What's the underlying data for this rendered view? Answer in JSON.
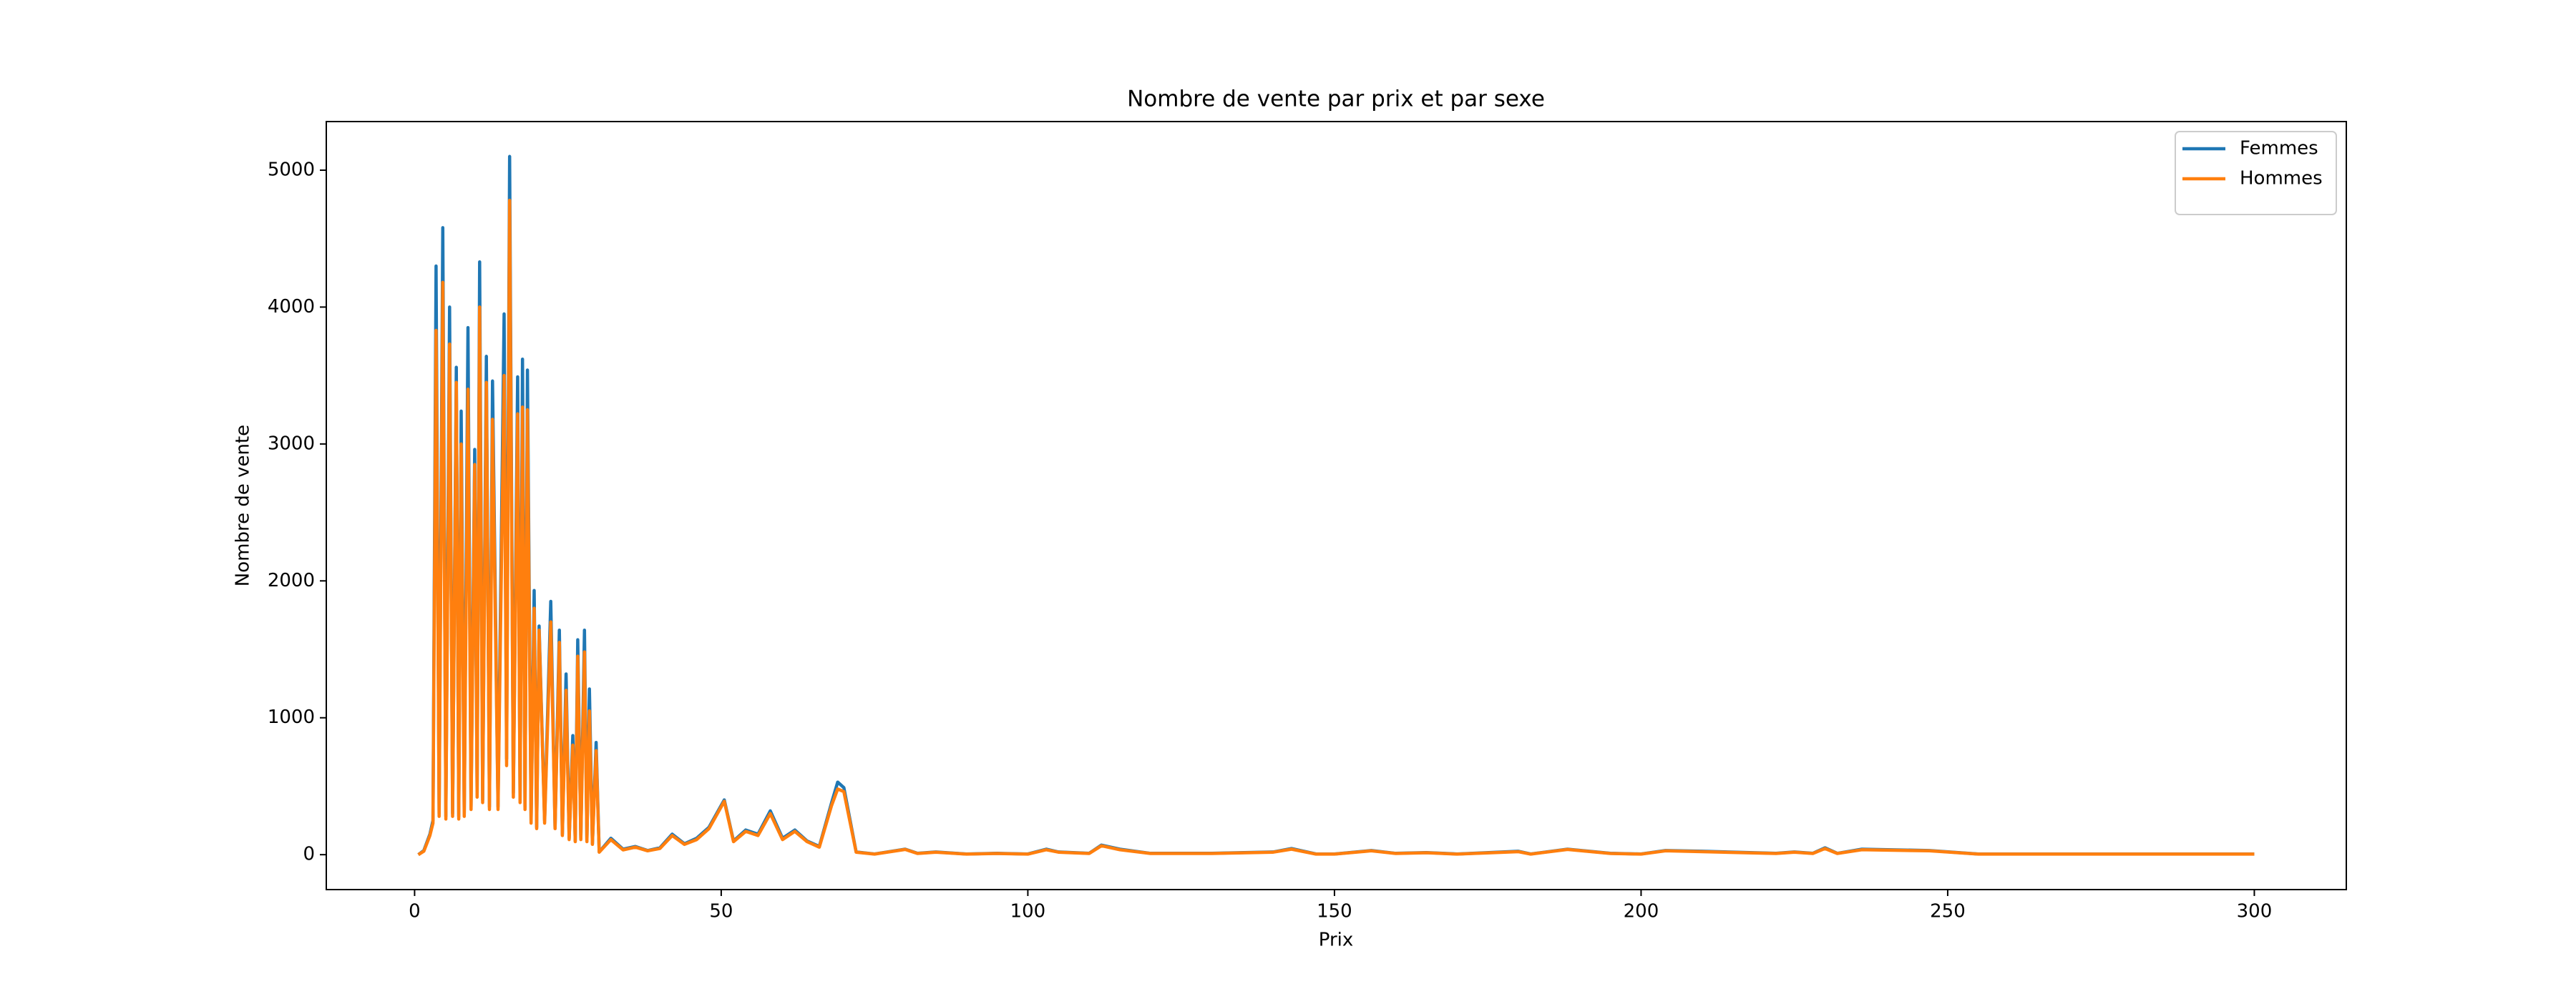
{
  "chart_data": {
    "type": "line",
    "title": "Nombre de vente par prix et par sexe",
    "xlabel": "Prix",
    "ylabel": "Nombre de vente",
    "x": [
      0.6,
      1.5,
      2.5,
      3.0,
      3.5,
      4.0,
      4.6,
      5.1,
      5.7,
      6.2,
      6.8,
      7.2,
      7.6,
      8.1,
      8.7,
      9.2,
      9.8,
      10.2,
      10.6,
      11.1,
      11.7,
      12.2,
      12.7,
      13.6,
      14.6,
      15.0,
      15.5,
      16.1,
      16.8,
      17.2,
      17.6,
      18.0,
      18.4,
      19.0,
      19.5,
      19.9,
      20.3,
      21.2,
      22.2,
      22.9,
      23.6,
      24.1,
      24.7,
      25.2,
      25.8,
      26.2,
      26.6,
      27.1,
      27.7,
      28.1,
      28.5,
      29.0,
      29.6,
      30.1,
      32,
      34,
      36,
      38,
      40,
      42,
      44,
      46,
      48,
      50.5,
      52,
      54,
      56,
      58,
      60,
      62,
      64,
      66,
      68,
      69,
      70,
      72,
      75,
      80,
      82,
      85,
      90,
      95,
      100,
      103,
      105,
      110,
      112,
      115,
      120,
      130,
      140,
      143,
      147,
      150,
      156,
      160,
      165,
      170,
      180,
      182,
      188,
      195,
      200,
      204,
      210,
      222,
      225,
      228,
      230,
      232,
      236,
      247,
      255,
      270,
      285,
      300
    ],
    "series": [
      {
        "name": "Femmes",
        "color": "#1f77b4",
        "values": [
          0,
          30,
          150,
          250,
          4300,
          300,
          4580,
          280,
          4000,
          300,
          3560,
          280,
          3240,
          300,
          3850,
          350,
          2960,
          450,
          4330,
          400,
          3640,
          350,
          3460,
          350,
          3950,
          700,
          5100,
          450,
          3490,
          400,
          3620,
          350,
          3540,
          250,
          1930,
          200,
          1670,
          250,
          1850,
          200,
          1640,
          150,
          1320,
          120,
          870,
          100,
          1570,
          120,
          1640,
          100,
          1210,
          80,
          820,
          20,
          120,
          40,
          60,
          30,
          50,
          150,
          80,
          120,
          200,
          400,
          100,
          180,
          150,
          320,
          120,
          180,
          100,
          60,
          380,
          530,
          490,
          20,
          5,
          40,
          10,
          20,
          5,
          10,
          5,
          40,
          20,
          10,
          70,
          40,
          10,
          10,
          20,
          45,
          5,
          5,
          30,
          10,
          15,
          5,
          25,
          5,
          40,
          10,
          5,
          30,
          25,
          10,
          20,
          10,
          50,
          10,
          40,
          30,
          5,
          5,
          5,
          5
        ]
      },
      {
        "name": "Hommes",
        "color": "#ff7f0e",
        "values": [
          0,
          25,
          140,
          230,
          3830,
          280,
          4180,
          260,
          3730,
          280,
          3450,
          260,
          3000,
          280,
          3400,
          330,
          2850,
          420,
          4000,
          380,
          3450,
          330,
          3180,
          330,
          3500,
          650,
          4780,
          420,
          3220,
          380,
          3270,
          330,
          3250,
          230,
          1800,
          190,
          1640,
          230,
          1700,
          190,
          1550,
          140,
          1200,
          110,
          800,
          95,
          1450,
          110,
          1480,
          95,
          1050,
          75,
          760,
          18,
          110,
          35,
          55,
          28,
          45,
          140,
          75,
          110,
          190,
          390,
          95,
          170,
          140,
          300,
          110,
          170,
          95,
          55,
          360,
          480,
          460,
          18,
          4,
          38,
          9,
          18,
          4,
          9,
          4,
          36,
          18,
          9,
          65,
          36,
          9,
          9,
          18,
          40,
          4,
          4,
          28,
          9,
          14,
          4,
          22,
          4,
          38,
          9,
          4,
          28,
          22,
          9,
          18,
          9,
          45,
          9,
          36,
          28,
          4,
          4,
          4,
          4
        ]
      }
    ],
    "xlim": [
      -14.4,
      315
    ],
    "ylim": [
      -255,
      5355
    ],
    "xticks": [
      0,
      50,
      100,
      150,
      200,
      250,
      300
    ],
    "yticks": [
      0,
      1000,
      2000,
      3000,
      4000,
      5000
    ],
    "grid": false,
    "legend": "upper right"
  }
}
